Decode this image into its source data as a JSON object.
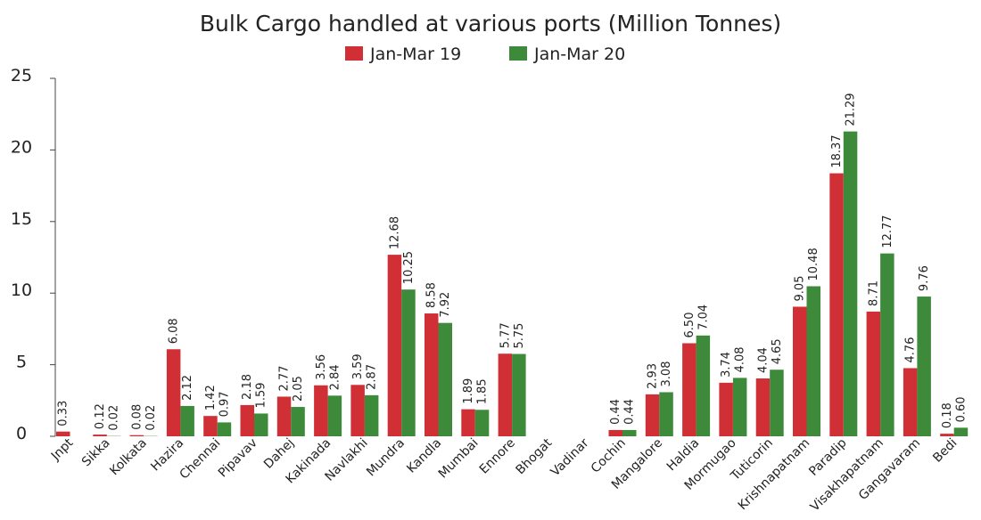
{
  "chart_data": {
    "type": "bar",
    "title": "Bulk Cargo handled at various ports (Million Tonnes)",
    "xlabel": "",
    "ylabel": "",
    "ylim": [
      0,
      25
    ],
    "yticks": [
      0,
      5,
      10,
      15,
      20,
      25
    ],
    "grid": false,
    "legend_position": "top-center",
    "categories": [
      "Jnpt",
      "Sikka",
      "Kolkata",
      "Hazira",
      "Chennai",
      "Pipavav",
      "Dahej",
      "Kakinada",
      "Navlakhi",
      "Mundra",
      "Kandla",
      "Mumbai",
      "Ennore",
      "Bhogat",
      "Vadinar",
      "Cochin",
      "Mangalore",
      "Haldia",
      "Mormugao",
      "Tuticorin",
      "Krishnapatnam",
      "Paradip",
      "Visakhapatnam",
      "Gangavaram",
      "Bedi"
    ],
    "series": [
      {
        "name": "Jan-Mar 19",
        "color": "#d03035",
        "values": [
          0.33,
          0.12,
          0.08,
          6.08,
          1.42,
          2.18,
          2.77,
          3.56,
          3.59,
          12.68,
          8.58,
          1.89,
          5.77,
          null,
          null,
          0.44,
          2.93,
          6.5,
          3.74,
          4.04,
          9.05,
          18.37,
          8.71,
          4.76,
          0.18
        ],
        "labels": [
          "0.33",
          "0.12",
          "0.08",
          "6.08",
          "1.42",
          "2.18",
          "2.77",
          "3.56",
          "3.59",
          "12.68",
          "8.58",
          "1.89",
          "5.77",
          "",
          "",
          "0.44",
          "2.93",
          "6.50",
          "3.74",
          "4.04",
          "9.05",
          "18.37",
          "8.71",
          "4.76",
          "0.18"
        ]
      },
      {
        "name": "Jan-Mar 20",
        "color": "#3d8a3a",
        "values": [
          null,
          0.02,
          0.02,
          2.12,
          0.97,
          1.59,
          2.05,
          2.84,
          2.87,
          10.25,
          7.92,
          1.85,
          5.75,
          null,
          null,
          0.44,
          3.08,
          7.04,
          4.08,
          4.65,
          10.48,
          21.29,
          12.77,
          9.76,
          0.6
        ],
        "labels": [
          "",
          "0.02",
          "0.02",
          "2.12",
          "0.97",
          "1.59",
          "2.05",
          "2.84",
          "2.87",
          "10.25",
          "7.92",
          "1.85",
          "5.75",
          "",
          "",
          "0.44",
          "3.08",
          "7.04",
          "4.08",
          "4.65",
          "10.48",
          "21.29",
          "12.77",
          "9.76",
          "0.60"
        ]
      }
    ]
  }
}
